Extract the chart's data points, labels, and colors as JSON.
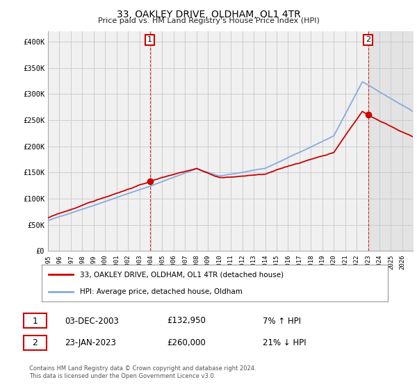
{
  "title": "33, OAKLEY DRIVE, OLDHAM, OL1 4TR",
  "subtitle": "Price paid vs. HM Land Registry's House Price Index (HPI)",
  "ylabel_ticks": [
    "£0",
    "£50K",
    "£100K",
    "£150K",
    "£200K",
    "£250K",
    "£300K",
    "£350K",
    "£400K"
  ],
  "ylabel_values": [
    0,
    50000,
    100000,
    150000,
    200000,
    250000,
    300000,
    350000,
    400000
  ],
  "ylim": [
    0,
    420000
  ],
  "sale1_price": 132950,
  "sale1_year": 2003,
  "sale1_month": 12,
  "sale1_label": "1",
  "sale1_date_str": "03-DEC-2003",
  "sale1_pct": "7% ↑ HPI",
  "sale2_price": 260000,
  "sale2_year": 2023,
  "sale2_month": 1,
  "sale2_label": "2",
  "sale2_date_str": "23-JAN-2023",
  "sale2_pct": "21% ↓ HPI",
  "legend_line1": "33, OAKLEY DRIVE, OLDHAM, OL1 4TR (detached house)",
  "legend_line2": "HPI: Average price, detached house, Oldham",
  "footer1": "Contains HM Land Registry data © Crown copyright and database right 2024.",
  "footer2": "This data is licensed under the Open Government Licence v3.0.",
  "table_row1_label": "1",
  "table_row1_date": "03-DEC-2003",
  "table_row1_price": "£132,950",
  "table_row1_hpi": "7% ↑ HPI",
  "table_row2_label": "2",
  "table_row2_date": "23-JAN-2023",
  "table_row2_price": "£260,000",
  "table_row2_hpi": "21% ↓ HPI",
  "line_color_price": "#cc0000",
  "line_color_hpi": "#88aadd",
  "background_color": "#ffffff",
  "grid_color": "#cccccc",
  "plot_bg_color": "#f0f0f0",
  "x_start_year": 1995,
  "x_end_year": 2026
}
